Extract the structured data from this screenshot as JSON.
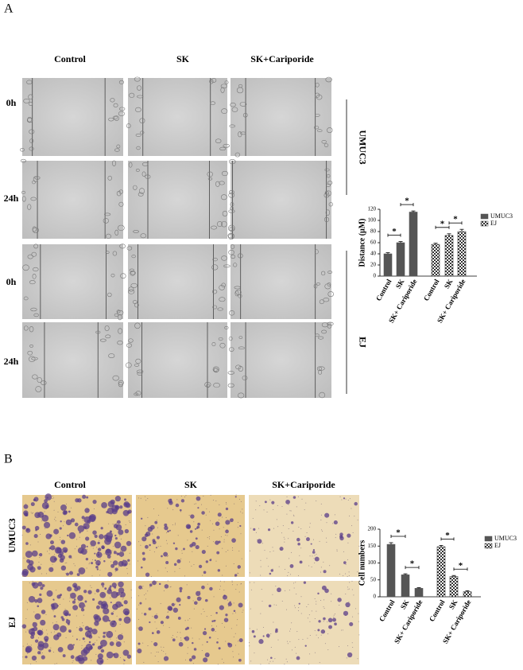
{
  "panels": [
    {
      "label": "A",
      "columns": [
        "Control",
        "SK",
        "SK+Cariporide"
      ],
      "rows": [
        "0h",
        "24h",
        "0h",
        "24h"
      ],
      "groups": [
        "UMUC3",
        "EJ"
      ]
    },
    {
      "label": "B",
      "columns": [
        "Control",
        "SK",
        "SK+Cariporide"
      ],
      "groups": [
        "UMUC3",
        "EJ"
      ]
    }
  ],
  "chart_data": [
    {
      "type": "bar",
      "categories": [
        "Control",
        "SK",
        "SK+ Cariporide"
      ],
      "series": [
        {
          "name": "UMUC3",
          "color": "#555555",
          "values": [
            40,
            60,
            115
          ],
          "errors": [
            2,
            2,
            2
          ]
        },
        {
          "name": "EJ",
          "color": "#333333",
          "pattern": "checker",
          "values": [
            57,
            73,
            80
          ],
          "errors": [
            2,
            3,
            4
          ]
        }
      ],
      "ylabel": "Distance (μM)",
      "ylim": [
        0,
        120
      ],
      "yticks": [
        0,
        20,
        40,
        60,
        80,
        100,
        120
      ],
      "annotations": [
        "*",
        "*",
        "*",
        "*"
      ],
      "legend": "right"
    },
    {
      "type": "bar",
      "categories": [
        "Control",
        "SK",
        "SK+ Cariporide"
      ],
      "series": [
        {
          "name": "UMUC3",
          "color": "#555555",
          "values": [
            155,
            65,
            25
          ],
          "errors": [
            5,
            3,
            2
          ]
        },
        {
          "name": "EJ",
          "color": "#333333",
          "pattern": "checker",
          "values": [
            148,
            60,
            15
          ],
          "errors": [
            4,
            3,
            3
          ]
        }
      ],
      "ylabel": "Cell numbers",
      "ylim": [
        0,
        200
      ],
      "yticks": [
        0,
        50,
        100,
        150,
        200
      ],
      "annotations": [
        "*",
        "*",
        "*",
        "*"
      ],
      "legend": "right"
    }
  ]
}
